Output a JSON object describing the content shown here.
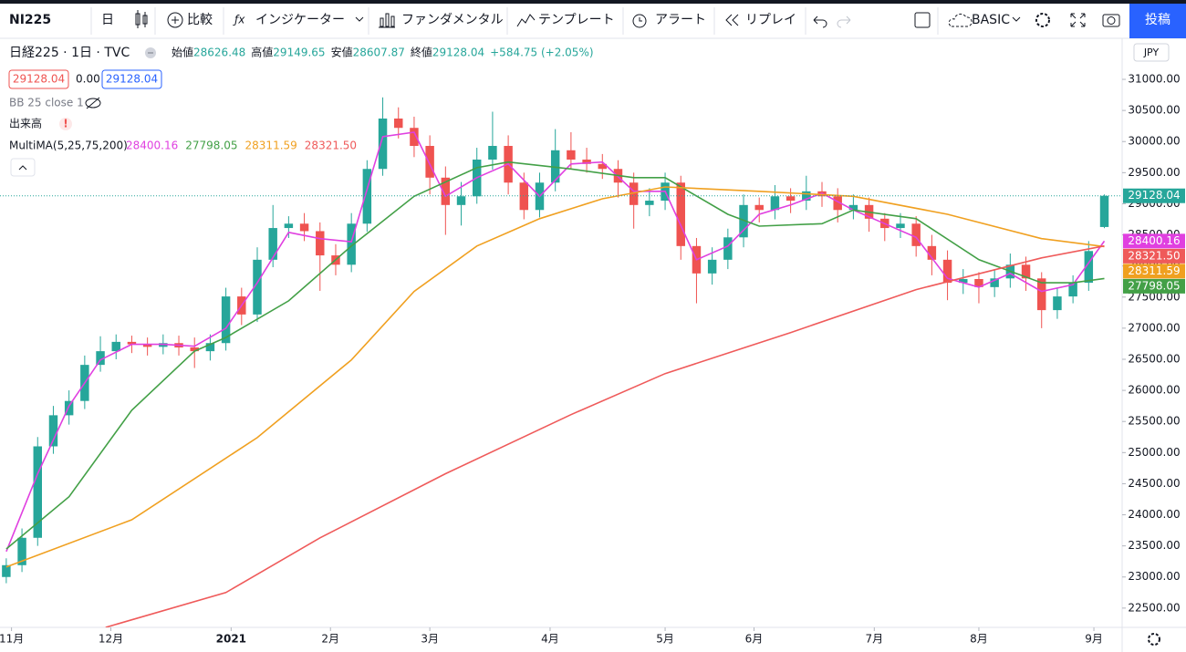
{
  "toolbar": {
    "symbol": "NI225",
    "interval": "日",
    "compare": "比較",
    "indicators": "インジケーター",
    "fundamentals": "ファンダメンタル",
    "templates": "テンプレート",
    "alert": "アラート",
    "replay": "リプレイ",
    "layout": "BASIC",
    "publish": "投稿"
  },
  "legend": {
    "title": "日経225 · 1日 · TVC",
    "open_label": "始値",
    "open": 28626.48,
    "high_label": "高値",
    "high": 29149.65,
    "low_label": "安値",
    "low": 28607.87,
    "close_label": "終値",
    "close": 29128.04,
    "change": "+584.75 (+2.05%)",
    "bid": 29128.04,
    "spread": "0.00",
    "ask": 29128.04,
    "bb": "BB 25 close 1",
    "volume": "出来高",
    "multima": "MultiMA(5,25,75,200)",
    "ma_values": [
      "28400.16",
      "27798.05",
      "28311.59",
      "28321.50"
    ],
    "currency": "JPY"
  },
  "chart_data": {
    "type": "candlestick",
    "x": [
      0,
      3,
      6,
      9,
      12,
      15,
      18,
      21,
      24,
      27,
      30,
      33,
      36,
      39,
      42,
      45,
      48,
      51,
      54,
      57,
      60,
      63,
      66,
      69,
      72,
      75,
      78,
      81,
      84,
      87,
      90,
      93,
      96,
      99,
      102,
      105,
      108,
      111,
      114,
      117,
      120,
      123,
      126,
      129,
      132,
      135,
      138,
      141,
      144,
      147,
      150,
      153,
      156,
      159,
      162,
      165,
      168,
      171,
      174,
      177,
      180,
      183,
      186,
      189,
      192,
      195,
      198,
      201,
      204,
      207,
      210
    ],
    "open": [
      23000,
      23190,
      23630,
      25100,
      25600,
      25830,
      26410,
      26630,
      26780,
      26740,
      26700,
      26760,
      26690,
      26630,
      26760,
      27510,
      27220,
      28100,
      28610,
      28680,
      28560,
      28170,
      28020,
      28680,
      29560,
      30370,
      30220,
      29930,
      29420,
      28980,
      29120,
      29710,
      29930,
      29340,
      28900,
      29340,
      29860,
      29710,
      29640,
      29560,
      29340,
      28980,
      29050,
      29340,
      28320,
      27880,
      28100,
      28460,
      28980,
      28900,
      29120,
      29050,
      29200,
      29120,
      28900,
      28980,
      28760,
      28610,
      28680,
      28320,
      28100,
      27730,
      27790,
      27660,
      27800,
      28020,
      27800,
      27290,
      27510,
      27730,
      28626.48
    ],
    "high": [
      23300,
      23780,
      25250,
      25750,
      26000,
      26560,
      26870,
      26900,
      26880,
      26850,
      26900,
      26880,
      26850,
      26900,
      27650,
      27650,
      28300,
      28980,
      28800,
      28850,
      28700,
      28350,
      28850,
      29700,
      30710,
      30550,
      30400,
      30100,
      29600,
      29350,
      29900,
      30480,
      30100,
      29500,
      29500,
      30200,
      30150,
      29900,
      29800,
      29700,
      29500,
      29250,
      29500,
      29450,
      28450,
      28300,
      28600,
      29150,
      29100,
      29300,
      29250,
      29450,
      29350,
      29250,
      29150,
      29100,
      28850,
      28850,
      28800,
      28500,
      28250,
      27950,
      27900,
      27950,
      28200,
      28150,
      27900,
      27650,
      27850,
      28400,
      29149.65
    ],
    "low": [
      22900,
      23080,
      23500,
      24980,
      25450,
      25700,
      26300,
      26500,
      26600,
      26560,
      26580,
      26560,
      26360,
      26480,
      26640,
      27050,
      27100,
      27980,
      28450,
      28400,
      27600,
      27850,
      27900,
      28550,
      29450,
      30050,
      29750,
      29150,
      28500,
      28650,
      29000,
      29550,
      29150,
      28750,
      28780,
      29200,
      29550,
      29500,
      29400,
      29100,
      28600,
      28800,
      28900,
      28100,
      27400,
      27700,
      27950,
      28300,
      28700,
      28750,
      28850,
      28900,
      28950,
      28700,
      28750,
      28550,
      28400,
      28450,
      28150,
      27850,
      27450,
      27550,
      27400,
      27500,
      27650,
      27600,
      27000,
      27150,
      27400,
      27600,
      28607.87
    ],
    "close": [
      23190,
      23630,
      25100,
      25600,
      25830,
      26410,
      26630,
      26780,
      26740,
      26700,
      26760,
      26690,
      26630,
      26760,
      27510,
      27220,
      28100,
      28610,
      28680,
      28560,
      28170,
      28020,
      28680,
      29560,
      30370,
      30220,
      29930,
      29420,
      28980,
      29120,
      29710,
      29930,
      29340,
      28900,
      29340,
      29860,
      29710,
      29640,
      29560,
      29340,
      28980,
      29050,
      29340,
      28320,
      27880,
      28100,
      28460,
      28980,
      28900,
      29120,
      29050,
      29200,
      29120,
      28900,
      28980,
      28760,
      28610,
      28680,
      28320,
      28100,
      27730,
      27790,
      27660,
      27800,
      28020,
      27800,
      27290,
      27510,
      27730,
      28240,
      29128.04
    ],
    "up_color": "#26a69a",
    "down_color": "#ef5350",
    "series": [
      {
        "color": "#e040e0",
        "x": [
          0,
          6,
          12,
          18,
          24,
          30,
          36,
          42,
          48,
          54,
          60,
          66,
          72,
          78,
          84,
          90,
          96,
          102,
          108,
          114,
          120,
          126,
          132,
          138,
          144,
          150,
          156,
          162,
          168,
          174,
          180,
          186,
          192,
          198,
          204,
          210
        ],
        "values": [
          23410,
          24660,
          25750,
          26490,
          26740,
          26740,
          26710,
          27000,
          27730,
          28540,
          28440,
          28390,
          30080,
          30150,
          29120,
          29420,
          29640,
          29120,
          29640,
          29670,
          29200,
          29200,
          28100,
          28320,
          28830,
          28980,
          29170,
          28900,
          28680,
          28460,
          27800,
          27660,
          27880,
          27590,
          27700,
          28400.16
        ]
      },
      {
        "color": "#43a047",
        "x": [
          0,
          12,
          24,
          36,
          42,
          54,
          66,
          78,
          90,
          96,
          108,
          120,
          126,
          138,
          144,
          156,
          162,
          174,
          186,
          198,
          204,
          210
        ],
        "values": [
          23450,
          24290,
          25680,
          26630,
          26850,
          27440,
          28320,
          29120,
          29580,
          29670,
          29560,
          29420,
          29420,
          28830,
          28640,
          28680,
          28900,
          28760,
          28100,
          27730,
          27730,
          27798.05
        ]
      },
      {
        "color": "#f0a020",
        "x": [
          0,
          24,
          48,
          66,
          78,
          90,
          102,
          114,
          126,
          144,
          162,
          180,
          198,
          210
        ],
        "values": [
          23160,
          23920,
          25240,
          26490,
          27590,
          28320,
          28760,
          29080,
          29270,
          29200,
          29120,
          28830,
          28440,
          28311.59
        ]
      },
      {
        "color": "#ef5a5a",
        "x": [
          19,
          42,
          60,
          84,
          108,
          126,
          150,
          174,
          198,
          210
        ],
        "values": [
          22190,
          22750,
          23630,
          24660,
          25610,
          26270,
          26930,
          27620,
          28130,
          28321.5
        ]
      }
    ],
    "xlim": [
      -1.2,
      213.4
    ],
    "ylim": [
      22190,
      31660
    ],
    "xticks": [
      {
        "value": 1,
        "label": "11月"
      },
      {
        "value": 20,
        "label": "12月"
      },
      {
        "value": 43,
        "label": "2021"
      },
      {
        "value": 62,
        "label": "2月"
      },
      {
        "value": 81,
        "label": "3月"
      },
      {
        "value": 104,
        "label": "4月"
      },
      {
        "value": 126,
        "label": "5月"
      },
      {
        "value": 143,
        "label": "6月"
      },
      {
        "value": 166,
        "label": "7月"
      },
      {
        "value": 186,
        "label": "8月"
      },
      {
        "value": 208,
        "label": "9月"
      }
    ],
    "yticks": [
      {
        "value": 22500,
        "label": "22500.00"
      },
      {
        "value": 23000,
        "label": "23000.00"
      },
      {
        "value": 23500,
        "label": "23500.00"
      },
      {
        "value": 24000,
        "label": "24000.00"
      },
      {
        "value": 24500,
        "label": "24500.00"
      },
      {
        "value": 25000,
        "label": "25000.00"
      },
      {
        "value": 25500,
        "label": "25500.00"
      },
      {
        "value": 26000,
        "label": "26000.00"
      },
      {
        "value": 26500,
        "label": "26500.00"
      },
      {
        "value": 27000,
        "label": "27000.00"
      },
      {
        "value": 27500,
        "label": "27500.00"
      },
      {
        "value": 28000,
        "label": "28000.00"
      },
      {
        "value": 28500,
        "label": "28500.00"
      },
      {
        "value": 29000,
        "label": "29000.00"
      },
      {
        "value": 29500,
        "label": "29500.00"
      },
      {
        "value": 30000,
        "label": "30000.00"
      },
      {
        "value": 30500,
        "label": "30500.00"
      },
      {
        "value": 31000,
        "label": "31000.00"
      }
    ],
    "grid": false
  }
}
